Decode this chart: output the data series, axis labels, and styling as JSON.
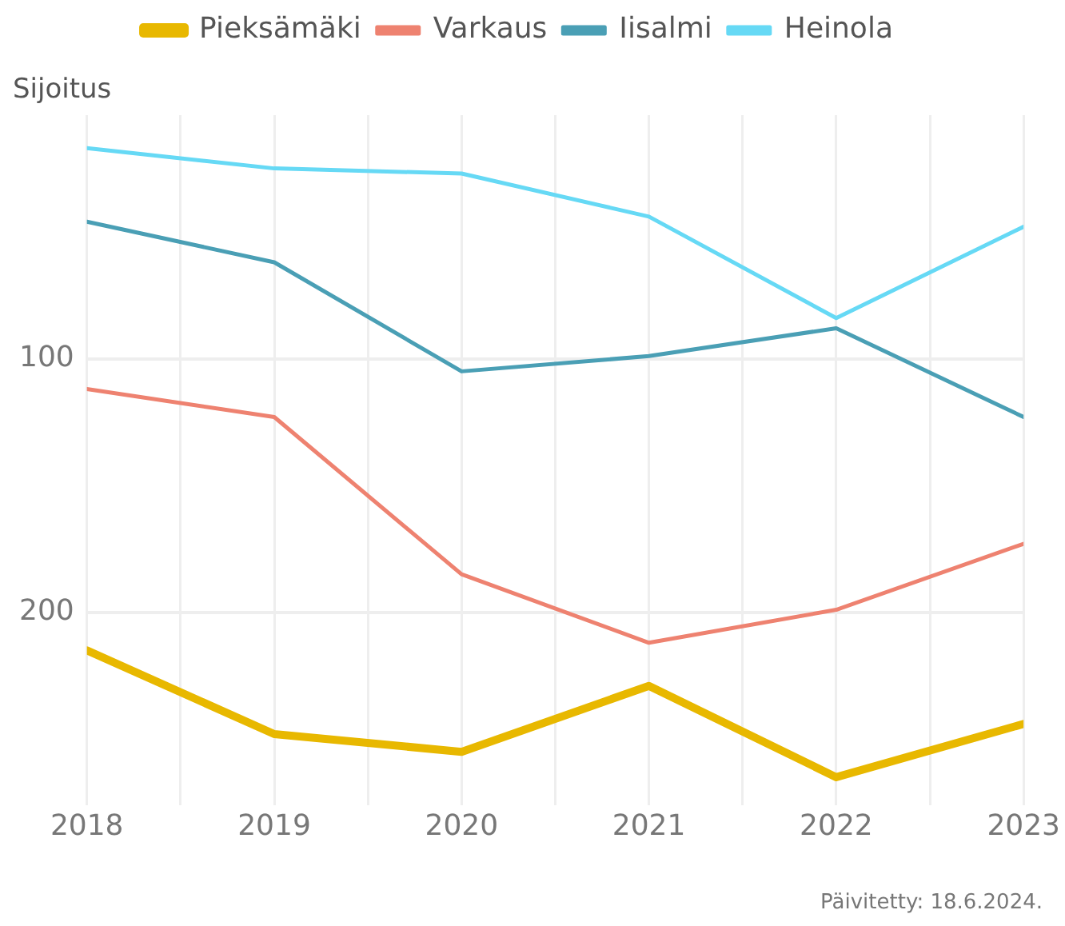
{
  "chart_data": {
    "type": "line",
    "ylabel": "Sijoitus",
    "annotations": [
      "Päivitetty: 18.6.2024."
    ],
    "x": [
      2018,
      2019,
      2020,
      2021,
      2022,
      2023
    ],
    "xlim": [
      2018,
      2023
    ],
    "xticks": [
      2018,
      {
        "value": 2018.5,
        "label": null
      },
      2019,
      {
        "value": 2019.5,
        "label": null
      },
      2020,
      {
        "value": 2020.5,
        "label": null
      },
      2021,
      {
        "value": 2021.5,
        "label": null
      },
      2022,
      {
        "value": 2022.5,
        "label": null
      },
      2023
    ],
    "ylim": [
      276,
      4
    ],
    "yticks": [
      100,
      200
    ],
    "grid": true,
    "legend": "top",
    "marker": "none",
    "line_style": "solid",
    "series": [
      {
        "name": "Pieksämäki",
        "color": "#e8b800",
        "values": [
          215,
          248,
          255,
          229,
          265,
          244
        ]
      },
      {
        "name": "Varkaus",
        "color": "#ee8270",
        "values": [
          112,
          123,
          185,
          212,
          199,
          173
        ]
      },
      {
        "name": "Iisalmi",
        "color": "#4a9fb5",
        "values": [
          46,
          62,
          105,
          99,
          88,
          123
        ]
      },
      {
        "name": "Heinola",
        "color": "#66d9f5",
        "values": [
          17,
          25,
          27,
          44,
          84,
          48
        ]
      }
    ]
  }
}
